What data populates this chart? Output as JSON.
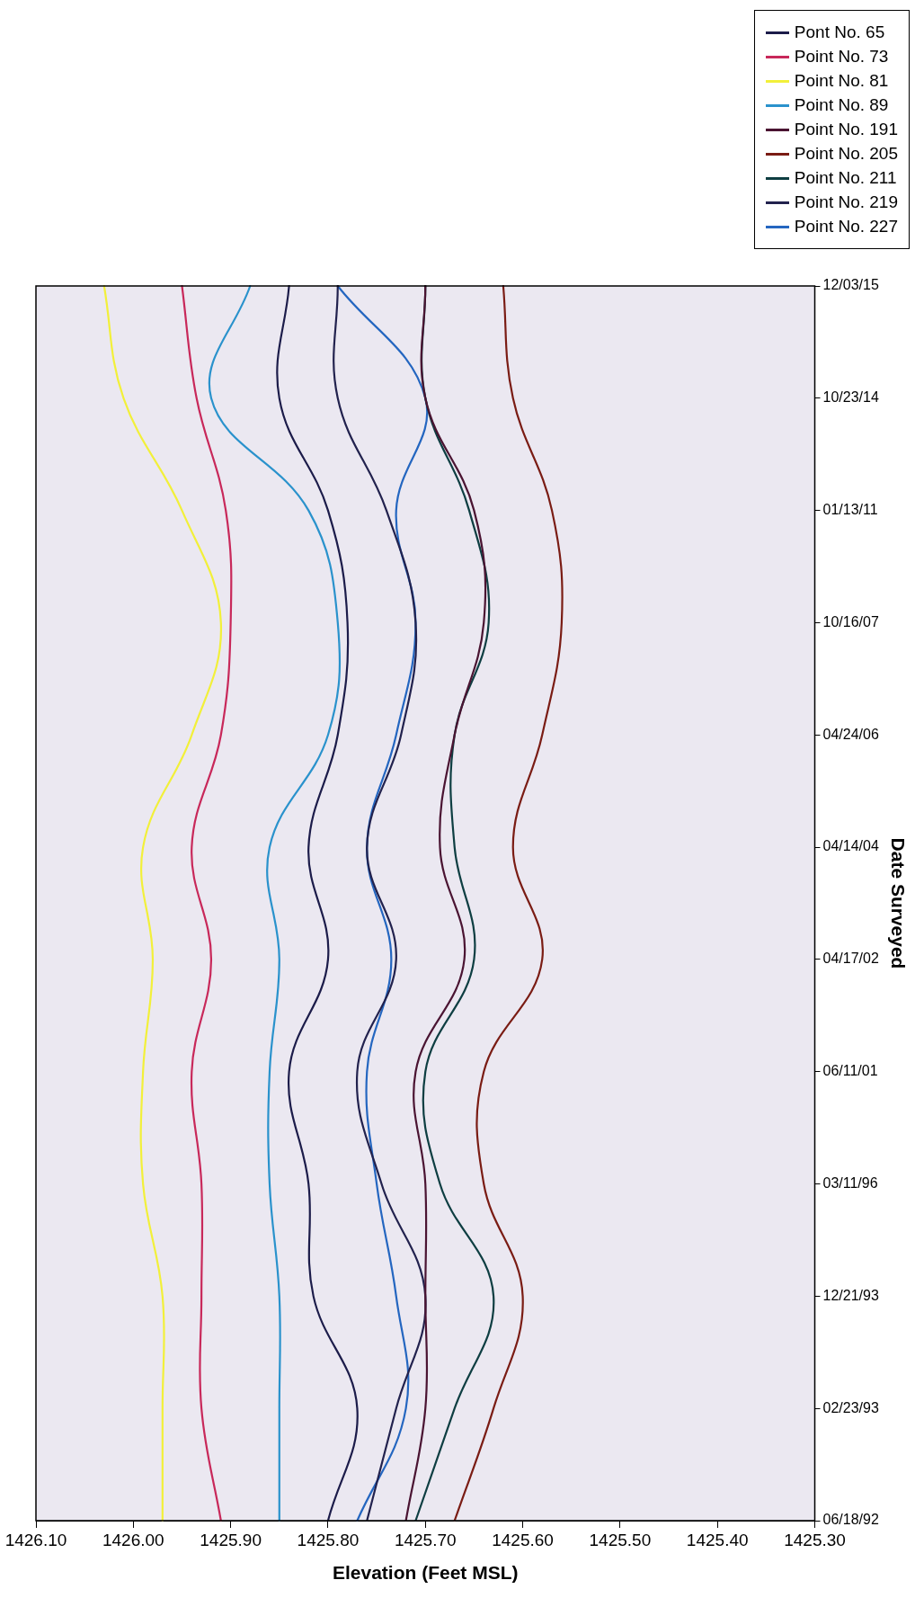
{
  "chart_data": {
    "type": "line",
    "orientation": "horizontal",
    "xlabel": "Elevation (Feet MSL)",
    "ylabel": "Date Surveyed",
    "categories": [
      "12/03/15",
      "10/23/14",
      "01/13/11",
      "10/16/07",
      "04/24/06",
      "04/14/04",
      "04/17/02",
      "06/11/01",
      "03/11/96",
      "12/21/93",
      "02/23/93",
      "06/18/92"
    ],
    "xlim": [
      1426.1,
      1425.3
    ],
    "xticks": [
      {
        "value": 1426.1,
        "label": "1426.10"
      },
      {
        "value": 1426.0,
        "label": "1426.00"
      },
      {
        "value": 1425.9,
        "label": "1425.90"
      },
      {
        "value": 1425.8,
        "label": "1425.80"
      },
      {
        "value": 1425.7,
        "label": "1425.70"
      },
      {
        "value": 1425.6,
        "label": "1425.60"
      },
      {
        "value": 1425.5,
        "label": "1425.50"
      },
      {
        "value": 1425.4,
        "label": "1425.40"
      },
      {
        "value": 1425.3,
        "label": "1425.30"
      }
    ],
    "grid": false,
    "legend": "top right",
    "marker": "none",
    "line_style": "solid",
    "series": [
      {
        "name": "Pont No. 65",
        "color": "#1c1c4a",
        "values": [
          1425.84,
          1425.85,
          1425.8,
          1425.78,
          1425.79,
          1425.82,
          1425.8,
          1425.84,
          1425.82,
          1425.815,
          1425.77,
          1425.8
        ]
      },
      {
        "name": "Point No. 73",
        "color": "#c8285a",
        "values": [
          1425.95,
          1425.935,
          1425.905,
          1425.9,
          1425.91,
          1425.94,
          1425.92,
          1425.94,
          1425.93,
          1425.93,
          1425.93,
          1425.91
        ]
      },
      {
        "name": "Point No. 81",
        "color": "#f2f03a",
        "values": [
          1426.03,
          1426.01,
          1425.95,
          1425.91,
          1425.94,
          1425.99,
          1425.98,
          1425.99,
          1425.99,
          1425.97,
          1425.97,
          1425.97
        ]
      },
      {
        "name": "Point No. 89",
        "color": "#2a92cc",
        "values": [
          1425.88,
          1425.92,
          1425.82,
          1425.79,
          1425.8,
          1425.86,
          1425.85,
          1425.86,
          1425.86,
          1425.85,
          1425.85,
          1425.85
        ]
      },
      {
        "name": "Point No. 191",
        "color": "#4a1432",
        "values": [
          1425.7,
          1425.7,
          1425.65,
          1425.64,
          1425.67,
          1425.685,
          1425.66,
          1425.71,
          1425.7,
          1425.7,
          1425.7,
          1425.72
        ]
      },
      {
        "name": "Point No. 205",
        "color": "#7a1c14",
        "values": [
          1425.62,
          1425.61,
          1425.57,
          1425.56,
          1425.58,
          1425.61,
          1425.58,
          1425.64,
          1425.64,
          1425.6,
          1425.63,
          1425.67
        ]
      },
      {
        "name": "Point No. 211",
        "color": "#0e3e42",
        "values": [
          1425.7,
          1425.7,
          1425.655,
          1425.635,
          1425.67,
          1425.67,
          1425.65,
          1425.7,
          1425.685,
          1425.63,
          1425.67,
          1425.71
        ]
      },
      {
        "name": "Point No. 219",
        "color": "#22224e",
        "values": [
          1425.79,
          1425.79,
          1425.74,
          1425.71,
          1425.725,
          1425.76,
          1425.73,
          1425.77,
          1425.745,
          1425.7,
          1425.73,
          1425.76
        ]
      },
      {
        "name": "Point No. 227",
        "color": "#2466c0",
        "values": [
          1425.79,
          1425.7,
          1425.73,
          1425.71,
          1425.73,
          1425.76,
          1425.735,
          1425.76,
          1425.75,
          1425.73,
          1425.72,
          1425.77
        ]
      }
    ]
  }
}
